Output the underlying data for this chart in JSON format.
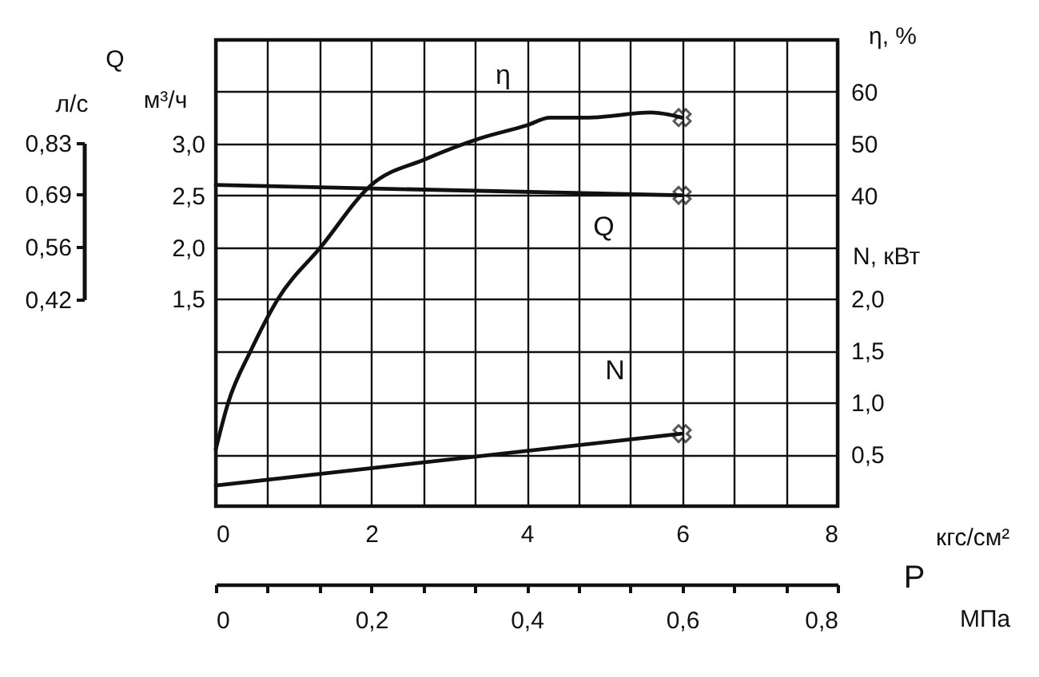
{
  "chart_data": {
    "type": "line",
    "series": [
      {
        "name": "η",
        "axis": "y2",
        "color": "#111111",
        "x": [
          0,
          0.16,
          0.45,
          0.8,
          1.35,
          2,
          2.7,
          3.4,
          4,
          4.3,
          4.8,
          5.6,
          6
        ],
        "values": [
          -9,
          0,
          10,
          20,
          30,
          42,
          47,
          51,
          53.5,
          55,
          55,
          56,
          55
        ]
      },
      {
        "name": "Q",
        "color": "#111111",
        "x": [
          0,
          6
        ],
        "values": [
          2.6,
          2.5
        ]
      },
      {
        "name": "N",
        "axis": "y3",
        "color": "#111111",
        "x": [
          0,
          6
        ],
        "values": [
          0.2,
          0.7
        ]
      },
      {
        "type": "scatter",
        "marker": "cross",
        "axis": "y2",
        "color": "#111111",
        "x": [
          6
        ],
        "values": [
          55
        ]
      },
      {
        "type": "scatter",
        "marker": "cross",
        "color": "#111111",
        "x": [
          6
        ],
        "values": [
          2.5
        ]
      },
      {
        "type": "scatter",
        "marker": "cross",
        "axis": "y3",
        "color": "#111111",
        "x": [
          6
        ],
        "values": [
          0.7
        ]
      }
    ],
    "xlabel": "кгс/см²",
    "xlim": [
      0,
      8
    ],
    "xticks": [
      0,
      {
        "value": 0.667,
        "label": null
      },
      {
        "value": 1.333,
        "label": null
      },
      2,
      {
        "value": 2.667,
        "label": null
      },
      {
        "value": 3.333,
        "label": null
      },
      4,
      {
        "value": 4.667,
        "label": null
      },
      {
        "value": 5.333,
        "label": null
      },
      6,
      {
        "value": 6.667,
        "label": null
      },
      {
        "value": 7.333,
        "label": null
      },
      8
    ],
    "x2label": "МПа",
    "x2lim": [
      0,
      0.8
    ],
    "x2ticks": [
      0,
      {
        "value": 0.0667,
        "label": null
      },
      {
        "value": 0.1333,
        "label": null
      },
      {
        "value": 0.2,
        "label": "0,2"
      },
      {
        "value": 0.2667,
        "label": null
      },
      {
        "value": 0.3333,
        "label": null
      },
      {
        "value": 0.4,
        "label": "0,4"
      },
      {
        "value": 0.4667,
        "label": null
      },
      {
        "value": 0.5333,
        "label": null
      },
      {
        "value": 0.6,
        "label": "0,6"
      },
      {
        "value": 0.6667,
        "label": null
      },
      {
        "value": 0.7333,
        "label": null
      },
      {
        "value": 0.8,
        "label": "0,8"
      }
    ],
    "ylabel": "м³/ч",
    "ylim": [
      -0.5,
      4.0
    ],
    "yticks": [
      {
        "value": 0,
        "label": null
      },
      {
        "value": 0.5,
        "label": null
      },
      {
        "value": 1.0,
        "label": null
      },
      {
        "value": 1.5,
        "label": "1,5"
      },
      {
        "value": 2.0,
        "label": "2,0"
      },
      {
        "value": 2.5,
        "label": "2,5"
      },
      {
        "value": 3.0,
        "label": "3,0"
      },
      {
        "value": 3.5,
        "label": null
      }
    ],
    "y2label": "η, %",
    "y2lim": [
      -20,
      70
    ],
    "y2ticks": [
      40,
      50,
      60
    ],
    "y3label": "N, кВт",
    "y3lim": [
      0,
      4.5
    ],
    "y3ticks": [
      {
        "value": 0.5,
        "label": "0,5"
      },
      {
        "value": 1.0,
        "label": "1,0"
      },
      {
        "value": 1.5,
        "label": "1,5"
      },
      {
        "value": 2.0,
        "label": "2,0"
      }
    ],
    "annotations": [
      "Q",
      "P",
      "л/с",
      "0,83",
      "0,69",
      "0,56",
      "0,42"
    ],
    "grid": true
  }
}
